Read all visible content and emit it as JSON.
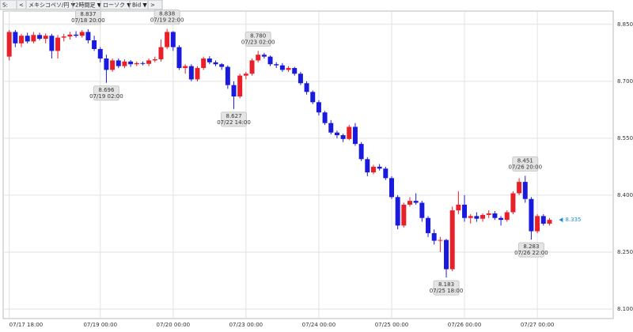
{
  "toolbar": {
    "items": [
      "S:",
      "<",
      "メキシコペソ/円 ▼",
      "2時間足 ▼",
      "ローソク ▼",
      "Bid ▼",
      ">"
    ]
  },
  "chart_data": {
    "type": "candlestick",
    "up_color": "#e8202a",
    "down_color": "#1a1adc",
    "grid": true,
    "ohlc": [
      [
        8.765,
        8.835,
        8.755,
        8.83
      ],
      [
        8.83,
        8.835,
        8.79,
        8.8
      ],
      [
        8.8,
        8.825,
        8.79,
        8.82
      ],
      [
        8.82,
        8.828,
        8.8,
        8.805
      ],
      [
        8.805,
        8.83,
        8.8,
        8.822
      ],
      [
        8.822,
        8.828,
        8.808,
        8.812
      ],
      [
        8.812,
        8.826,
        8.8,
        8.82
      ],
      [
        8.82,
        8.825,
        8.76,
        8.78
      ],
      [
        8.78,
        8.822,
        8.76,
        8.815
      ],
      [
        8.815,
        8.825,
        8.805,
        8.818
      ],
      [
        8.818,
        8.83,
        8.81,
        8.823
      ],
      [
        8.823,
        8.832,
        8.815,
        8.82
      ],
      [
        8.82,
        8.835,
        8.815,
        8.83
      ],
      [
        8.83,
        8.837,
        8.8,
        8.808
      ],
      [
        8.808,
        8.82,
        8.78,
        8.785
      ],
      [
        8.785,
        8.79,
        8.75,
        8.76
      ],
      [
        8.76,
        8.77,
        8.696,
        8.73
      ],
      [
        8.73,
        8.76,
        8.725,
        8.755
      ],
      [
        8.755,
        8.76,
        8.735,
        8.74
      ],
      [
        8.74,
        8.758,
        8.735,
        8.752
      ],
      [
        8.752,
        8.756,
        8.738,
        8.745
      ],
      [
        8.745,
        8.752,
        8.74,
        8.748
      ],
      [
        8.748,
        8.752,
        8.742,
        8.746
      ],
      [
        8.746,
        8.76,
        8.74,
        8.755
      ],
      [
        8.755,
        8.765,
        8.75,
        8.758
      ],
      [
        8.758,
        8.81,
        8.752,
        8.79
      ],
      [
        8.79,
        8.838,
        8.785,
        8.83
      ],
      [
        8.83,
        8.832,
        8.78,
        8.79
      ],
      [
        8.79,
        8.795,
        8.73,
        8.735
      ],
      [
        8.735,
        8.745,
        8.72,
        8.74
      ],
      [
        8.74,
        8.745,
        8.7,
        8.705
      ],
      [
        8.705,
        8.74,
        8.7,
        8.735
      ],
      [
        8.735,
        8.765,
        8.73,
        8.76
      ],
      [
        8.76,
        8.766,
        8.745,
        8.75
      ],
      [
        8.75,
        8.755,
        8.74,
        8.745
      ],
      [
        8.745,
        8.748,
        8.73,
        8.738
      ],
      [
        8.738,
        8.742,
        8.68,
        8.69
      ],
      [
        8.69,
        8.7,
        8.627,
        8.66
      ],
      [
        8.66,
        8.72,
        8.655,
        8.715
      ],
      [
        8.715,
        8.725,
        8.705,
        8.72
      ],
      [
        8.72,
        8.76,
        8.715,
        8.755
      ],
      [
        8.755,
        8.78,
        8.75,
        8.77
      ],
      [
        8.77,
        8.775,
        8.76,
        8.765
      ],
      [
        8.765,
        8.768,
        8.74,
        8.745
      ],
      [
        8.745,
        8.75,
        8.735,
        8.742
      ],
      [
        8.742,
        8.748,
        8.725,
        8.73
      ],
      [
        8.73,
        8.74,
        8.725,
        8.735
      ],
      [
        8.735,
        8.738,
        8.715,
        8.72
      ],
      [
        8.72,
        8.725,
        8.69,
        8.695
      ],
      [
        8.695,
        8.7,
        8.665,
        8.672
      ],
      [
        8.672,
        8.676,
        8.64,
        8.645
      ],
      [
        8.645,
        8.65,
        8.61,
        8.618
      ],
      [
        8.618,
        8.622,
        8.585,
        8.59
      ],
      [
        8.59,
        8.598,
        8.56,
        8.565
      ],
      [
        8.565,
        8.57,
        8.55,
        8.558
      ],
      [
        8.558,
        8.562,
        8.54,
        8.548
      ],
      [
        8.548,
        8.585,
        8.545,
        8.58
      ],
      [
        8.58,
        8.59,
        8.53,
        8.535
      ],
      [
        8.535,
        8.54,
        8.49,
        8.495
      ],
      [
        8.495,
        8.5,
        8.45,
        8.46
      ],
      [
        8.46,
        8.48,
        8.455,
        8.475
      ],
      [
        8.475,
        8.482,
        8.465,
        8.47
      ],
      [
        8.47,
        8.475,
        8.44,
        8.445
      ],
      [
        8.445,
        8.45,
        8.39,
        8.395
      ],
      [
        8.395,
        8.4,
        8.31,
        8.32
      ],
      [
        8.32,
        8.38,
        8.315,
        8.375
      ],
      [
        8.375,
        8.395,
        8.37,
        8.385
      ],
      [
        8.385,
        8.405,
        8.375,
        8.38
      ],
      [
        8.38,
        8.385,
        8.33,
        8.34
      ],
      [
        8.34,
        8.345,
        8.29,
        8.3
      ],
      [
        8.3,
        8.31,
        8.27,
        8.28
      ],
      [
        8.28,
        8.29,
        8.25,
        8.282
      ],
      [
        8.282,
        8.285,
        8.183,
        8.205
      ],
      [
        8.205,
        8.37,
        8.2,
        8.36
      ],
      [
        8.36,
        8.41,
        8.35,
        8.375
      ],
      [
        8.375,
        8.4,
        8.33,
        8.34
      ],
      [
        8.34,
        8.35,
        8.325,
        8.345
      ],
      [
        8.345,
        8.355,
        8.33,
        8.338
      ],
      [
        8.338,
        8.352,
        8.33,
        8.348
      ],
      [
        8.348,
        8.36,
        8.34,
        8.352
      ],
      [
        8.352,
        8.358,
        8.335,
        8.34
      ],
      [
        8.34,
        8.345,
        8.32,
        8.335
      ],
      [
        8.335,
        8.36,
        8.33,
        8.355
      ],
      [
        8.355,
        8.41,
        8.35,
        8.405
      ],
      [
        8.405,
        8.445,
        8.4,
        8.435
      ],
      [
        8.435,
        8.451,
        8.38,
        8.39
      ],
      [
        8.39,
        8.395,
        8.283,
        8.305
      ],
      [
        8.305,
        8.35,
        8.3,
        8.345
      ],
      [
        8.345,
        8.35,
        8.32,
        8.325
      ],
      [
        8.325,
        8.34,
        8.32,
        8.335
      ]
    ],
    "ylim": [
      8.075,
      8.885
    ],
    "yticks": [
      {
        "value": 8.1,
        "label": "8.100"
      },
      {
        "value": 8.25,
        "label": "8.250"
      },
      {
        "value": 8.4,
        "label": "8.400"
      },
      {
        "value": 8.55,
        "label": "8.550"
      },
      {
        "value": 8.7,
        "label": "8.700"
      },
      {
        "value": 8.85,
        "label": "8.850"
      }
    ],
    "xlim": [
      -1,
      99.5
    ],
    "xticks": [
      {
        "value": 0,
        "label": "07/17 18:00"
      },
      {
        "value": 15,
        "label": "07/19 00:00"
      },
      {
        "value": 27,
        "label": "07/20 00:00"
      },
      {
        "value": 39,
        "label": "07/23 00:00"
      },
      {
        "value": 51,
        "label": "07/24 00:00"
      },
      {
        "value": 63,
        "label": "07/25 00:00"
      },
      {
        "value": 75,
        "label": "07/26 00:00"
      },
      {
        "value": 87,
        "label": "07/27 00:00"
      }
    ],
    "annotations": [
      {
        "kind": "high",
        "price": 8.837,
        "time": "07/18 20:00"
      },
      {
        "kind": "high",
        "price": 8.838,
        "time": "07/19 22:00"
      },
      {
        "kind": "high",
        "price": 8.78,
        "label": "8.780",
        "time": "07/23 02:00"
      },
      {
        "kind": "high",
        "price": 8.451,
        "time": "07/26 20:00"
      },
      {
        "kind": "low",
        "price": 8.696,
        "time": "07/19 02:00"
      },
      {
        "kind": "low",
        "price": 8.627,
        "time": "07/22 14:00"
      },
      {
        "kind": "low",
        "price": 8.183,
        "time": "07/25 18:00"
      },
      {
        "kind": "low",
        "price": 8.283,
        "time": "07/26 22:00"
      }
    ],
    "last_price": 8.335,
    "last_price_color": "#1e90d8"
  }
}
